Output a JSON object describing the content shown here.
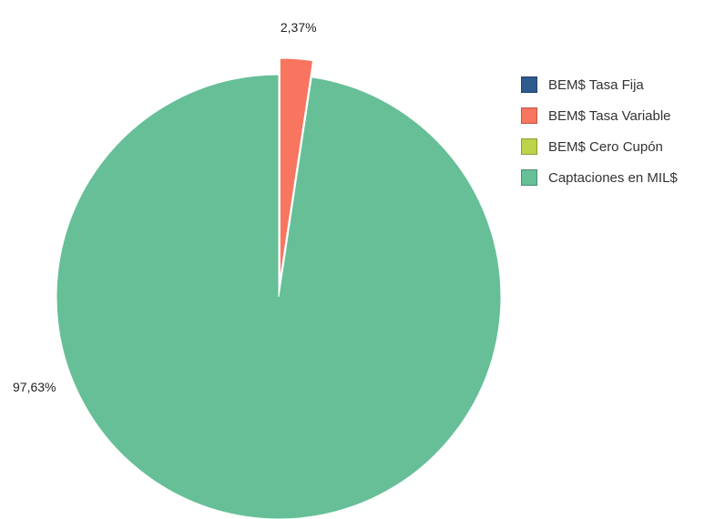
{
  "chart_data": {
    "type": "pie",
    "slices": [
      {
        "label": "BEM$ Tasa Fija",
        "value": 0,
        "value_label": "",
        "color": "#2e5a8e"
      },
      {
        "label": "BEM$ Tasa Variable",
        "value": 2.37,
        "value_label": "2,37%",
        "color": "#f87560"
      },
      {
        "label": "BEM$ Cero Cupón",
        "value": 0,
        "value_label": "",
        "color": "#bcd34a"
      },
      {
        "label": "Captaciones en MIL$",
        "value": 97.63,
        "value_label": "97,63%",
        "color": "#66bf97"
      }
    ],
    "legend_position": "right",
    "exploded_slice": "BEM$ Tasa Variable"
  }
}
